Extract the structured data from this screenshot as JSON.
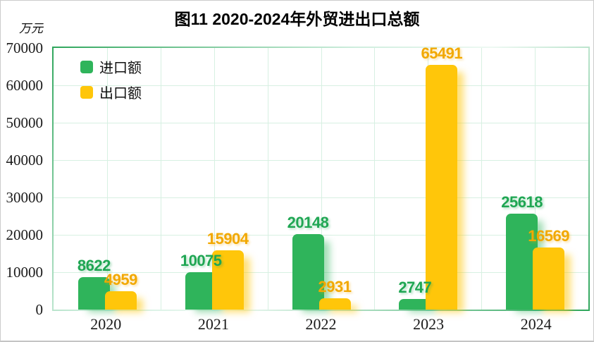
{
  "title": "图11 2020-2024年外贸进出口总额",
  "y_unit": "万元",
  "chart_data": {
    "type": "bar",
    "categories": [
      "2020",
      "2021",
      "2022",
      "2023",
      "2024"
    ],
    "series": [
      {
        "name": "进口额",
        "color": "#2FB45B",
        "label_color": "#1FA653",
        "values": [
          8622,
          10075,
          20148,
          2747,
          25618
        ]
      },
      {
        "name": "出口额",
        "color": "#FFC60A",
        "label_color": "#F2A800",
        "values": [
          4959,
          15904,
          2931,
          65491,
          16569
        ]
      }
    ],
    "ylim": [
      0,
      70000
    ],
    "ytick_step": 10000,
    "yticks": [
      "0",
      "10000",
      "20000",
      "30000",
      "40000",
      "50000",
      "60000",
      "70000"
    ],
    "grid": "on",
    "gridline_color": "#D7F0E2",
    "legend_position": "top-left-inside",
    "xlabel": "",
    "ylabel": "万元"
  }
}
